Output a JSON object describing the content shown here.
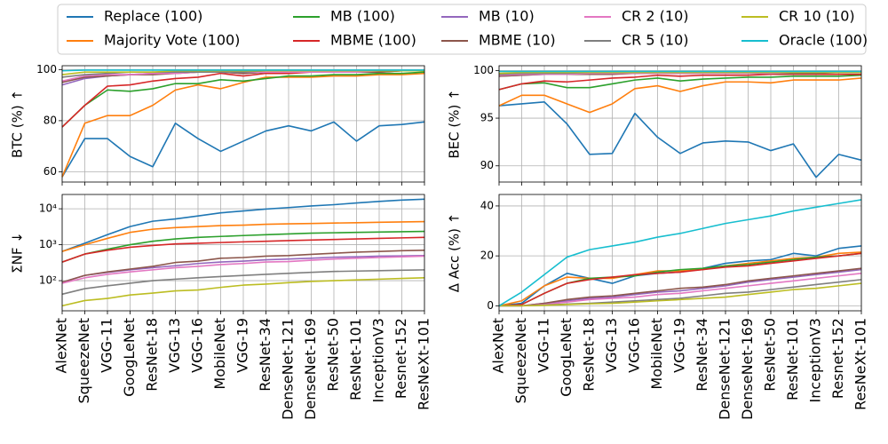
{
  "chart_data": [
    {
      "type": "line",
      "ylabel": "BTC  (%)  ↑",
      "ylim": [
        56,
        101.5
      ],
      "yticks": [
        60,
        80,
        100
      ],
      "grid": true,
      "series": [
        {
          "name": "Replace (100)",
          "color": "#1f77b4",
          "values": [
            58,
            73,
            73,
            66,
            62,
            79,
            73,
            68,
            72,
            76,
            78,
            76,
            79.5,
            72,
            78,
            78.5,
            79.5
          ]
        },
        {
          "name": "Majority Vote (100)",
          "color": "#ff7f0e",
          "values": [
            58,
            79,
            82,
            82,
            86,
            92,
            94,
            92.5,
            95,
            97,
            97,
            97,
            97.5,
            97.5,
            98,
            98,
            98.5
          ]
        },
        {
          "name": "MB (100)",
          "color": "#2ca02c",
          "values": [
            77.5,
            86,
            92,
            91.5,
            92.5,
            94.5,
            94.5,
            96,
            95.5,
            96.5,
            97.5,
            97.5,
            98,
            98,
            98.5,
            98.5,
            99
          ]
        },
        {
          "name": "MBME (100)",
          "color": "#d62728",
          "values": [
            77.5,
            86,
            93.5,
            94,
            95.5,
            96.5,
            97,
            98.5,
            97.5,
            98.5,
            98.5,
            99,
            99,
            99,
            99,
            99.5,
            99.5
          ]
        },
        {
          "name": "MB (10)",
          "color": "#9467bd",
          "values": [
            94,
            96.5,
            97.5,
            98,
            98.5,
            99,
            99,
            99,
            98.5,
            99,
            99,
            99,
            99,
            99,
            99.5,
            99.5,
            99.5
          ]
        },
        {
          "name": "MBME (10)",
          "color": "#8c564b",
          "values": [
            95,
            97,
            97.5,
            98,
            98,
            98.5,
            99,
            99,
            98.5,
            99,
            99,
            99,
            99,
            99,
            99,
            99.5,
            99.5
          ]
        },
        {
          "name": "CR 2 (10)",
          "color": "#e377c2",
          "values": [
            95.5,
            97.5,
            98,
            98,
            98.5,
            98.5,
            99,
            99,
            99,
            99,
            99,
            99,
            99,
            99,
            99.5,
            99.5,
            99.5
          ]
        },
        {
          "name": "CR 5 (10)",
          "color": "#7f7f7f",
          "values": [
            97,
            98,
            98.5,
            99,
            99,
            99,
            99,
            99,
            99,
            99.5,
            99.5,
            99.5,
            99.5,
            99.5,
            99.5,
            99.5,
            99.5
          ]
        },
        {
          "name": "CR 10 (10)",
          "color": "#bcbd22",
          "values": [
            98,
            99,
            99,
            99,
            99,
            99.5,
            99.5,
            99.5,
            99.5,
            99.5,
            99.5,
            99.5,
            99.5,
            99.5,
            99.5,
            99.5,
            99.5
          ]
        },
        {
          "name": "Oracle (100)",
          "color": "#17becf",
          "values": [
            99.5,
            99.8,
            99.8,
            99.8,
            99.8,
            99.8,
            99.8,
            99.8,
            99.8,
            99.8,
            99.8,
            99.8,
            99.8,
            99.8,
            99.8,
            99.8,
            99.8
          ]
        }
      ]
    },
    {
      "type": "line",
      "ylabel": "BEC (%)  ↑",
      "ylim": [
        88.3,
        100.5
      ],
      "yticks": [
        90,
        95,
        100
      ],
      "grid": true,
      "series": [
        {
          "name": "Replace (100)",
          "color": "#1f77b4",
          "values": [
            96.3,
            96.5,
            96.7,
            94.4,
            91.2,
            91.3,
            95.5,
            93,
            91.3,
            92.4,
            92.6,
            92.5,
            91.6,
            92.3,
            88.8,
            91.2,
            90.6
          ]
        },
        {
          "name": "Majority Vote (100)",
          "color": "#ff7f0e",
          "values": [
            96.3,
            97.4,
            97.4,
            96.5,
            95.6,
            96.5,
            98.1,
            98.4,
            97.8,
            98.4,
            98.8,
            98.8,
            98.7,
            99,
            99,
            99,
            99.2
          ]
        },
        {
          "name": "MB (100)",
          "color": "#2ca02c",
          "values": [
            98,
            98.6,
            98.7,
            98.2,
            98.2,
            98.6,
            99,
            99.2,
            98.9,
            99.1,
            99.2,
            99.3,
            99.3,
            99.4,
            99.4,
            99.4,
            99.5
          ]
        },
        {
          "name": "MBME (100)",
          "color": "#d62728",
          "values": [
            98,
            98.6,
            98.9,
            98.8,
            99,
            99.2,
            99.3,
            99.5,
            99.4,
            99.5,
            99.5,
            99.5,
            99.6,
            99.6,
            99.6,
            99.6,
            99.6
          ]
        },
        {
          "name": "MB (10)",
          "color": "#9467bd",
          "values": [
            99.4,
            99.5,
            99.6,
            99.6,
            99.6,
            99.7,
            99.7,
            99.7,
            99.7,
            99.7,
            99.7,
            99.7,
            99.7,
            99.7,
            99.8,
            99.8,
            99.8
          ]
        },
        {
          "name": "MBME (10)",
          "color": "#8c564b",
          "values": [
            99.4,
            99.5,
            99.6,
            99.6,
            99.6,
            99.6,
            99.7,
            99.7,
            99.7,
            99.7,
            99.7,
            99.7,
            99.7,
            99.7,
            99.7,
            99.8,
            99.8
          ]
        },
        {
          "name": "CR 2 (10)",
          "color": "#e377c2",
          "values": [
            99.5,
            99.6,
            99.6,
            99.6,
            99.7,
            99.7,
            99.7,
            99.7,
            99.7,
            99.7,
            99.7,
            99.7,
            99.7,
            99.8,
            99.8,
            99.8,
            99.8
          ]
        },
        {
          "name": "CR 5 (10)",
          "color": "#7f7f7f",
          "values": [
            99.6,
            99.7,
            99.7,
            99.7,
            99.8,
            99.8,
            99.8,
            99.8,
            99.8,
            99.8,
            99.8,
            99.8,
            99.8,
            99.8,
            99.8,
            99.8,
            99.8
          ]
        },
        {
          "name": "CR 10 (10)",
          "color": "#bcbd22",
          "values": [
            99.7,
            99.8,
            99.8,
            99.8,
            99.8,
            99.8,
            99.8,
            99.8,
            99.8,
            99.8,
            99.8,
            99.8,
            99.8,
            99.8,
            99.8,
            99.8,
            99.8
          ]
        },
        {
          "name": "Oracle (100)",
          "color": "#17becf",
          "values": [
            99.9,
            99.9,
            99.9,
            99.9,
            99.9,
            99.9,
            99.9,
            99.9,
            99.9,
            99.9,
            99.9,
            99.9,
            99.9,
            99.9,
            99.9,
            99.9,
            99.9
          ]
        }
      ]
    },
    {
      "type": "line",
      "ylabel": "ΣNF  ↓",
      "log": true,
      "ylim": [
        14.5,
        25000
      ],
      "yticks": [
        {
          "value": 100,
          "label": "10²"
        },
        {
          "value": 1000,
          "label": "10³"
        },
        {
          "value": 10000,
          "label": "10⁴"
        }
      ],
      "grid": true,
      "categories": [
        "AlexNet",
        "SqueezeNet",
        "VGG-11",
        "GoogLeNet",
        "ResNet-18",
        "VGG-13",
        "VGG-16",
        "MobileNet",
        "VGG-19",
        "ResNet-34",
        "DenseNet-121",
        "DenseNet-169",
        "ResNet-50",
        "ResNet-101",
        "InceptionV3",
        "Resnet-152",
        "ResNeXt-101"
      ],
      "series": [
        {
          "name": "Replace (100)",
          "color": "#1f77b4",
          "values": [
            650,
            1100,
            1900,
            3200,
            4500,
            5200,
            6300,
            7700,
            8700,
            9800,
            10800,
            12000,
            13000,
            14500,
            16000,
            17500,
            18500
          ]
        },
        {
          "name": "Majority Vote (100)",
          "color": "#ff7f0e",
          "values": [
            650,
            1000,
            1500,
            2200,
            2700,
            3000,
            3200,
            3400,
            3500,
            3700,
            3800,
            3900,
            4000,
            4100,
            4200,
            4300,
            4400
          ]
        },
        {
          "name": "MB (100)",
          "color": "#2ca02c",
          "values": [
            330,
            550,
            750,
            1000,
            1250,
            1450,
            1600,
            1700,
            1800,
            1900,
            2000,
            2100,
            2150,
            2200,
            2250,
            2300,
            2350
          ]
        },
        {
          "name": "MBME (100)",
          "color": "#d62728",
          "values": [
            330,
            550,
            700,
            850,
            950,
            1050,
            1100,
            1150,
            1200,
            1250,
            1300,
            1350,
            1400,
            1450,
            1500,
            1550,
            1600
          ]
        },
        {
          "name": "MB (10)",
          "color": "#9467bd",
          "values": [
            90,
            140,
            170,
            200,
            230,
            260,
            300,
            330,
            350,
            380,
            400,
            420,
            450,
            460,
            480,
            490,
            500
          ]
        },
        {
          "name": "MBME (10)",
          "color": "#8c564b",
          "values": [
            90,
            140,
            175,
            210,
            250,
            320,
            350,
            420,
            440,
            480,
            500,
            540,
            580,
            620,
            650,
            680,
            700
          ]
        },
        {
          "name": "CR 2 (10)",
          "color": "#e377c2",
          "values": [
            85,
            120,
            150,
            175,
            200,
            230,
            250,
            280,
            300,
            330,
            340,
            370,
            400,
            420,
            440,
            460,
            480
          ]
        },
        {
          "name": "CR 5 (10)",
          "color": "#7f7f7f",
          "values": [
            42,
            60,
            72,
            85,
            100,
            110,
            120,
            130,
            140,
            150,
            160,
            170,
            180,
            185,
            190,
            195,
            200
          ]
        },
        {
          "name": "CR 10 (10)",
          "color": "#bcbd22",
          "values": [
            20,
            28,
            32,
            40,
            45,
            52,
            55,
            65,
            75,
            80,
            88,
            95,
            100,
            105,
            110,
            115,
            120
          ]
        }
      ]
    },
    {
      "type": "line",
      "ylabel": "Δ Acc (%)  ↑",
      "ylim": [
        -2,
        44.6
      ],
      "yticks": [
        0,
        20,
        40
      ],
      "grid": true,
      "categories": [
        "AlexNet",
        "SqueezeNet",
        "VGG-11",
        "GoogLeNet",
        "ResNet-18",
        "VGG-13",
        "VGG-16",
        "MobileNet",
        "VGG-19",
        "ResNet-34",
        "DenseNet-121",
        "DenseNet-169",
        "ResNet-50",
        "ResNet-101",
        "InceptionV3",
        "Resnet-152",
        "ResNeXt-101"
      ],
      "series": [
        {
          "name": "Replace (100)",
          "color": "#1f77b4",
          "values": [
            0,
            1,
            8,
            13,
            11,
            9,
            12,
            13,
            13.5,
            15,
            17,
            18,
            18.5,
            21,
            20,
            23,
            24
          ]
        },
        {
          "name": "Majority Vote (100)",
          "color": "#ff7f0e",
          "values": [
            0,
            2,
            8,
            11.5,
            11,
            11,
            12.5,
            14,
            14,
            14.5,
            16,
            17,
            18,
            19,
            19.5,
            21,
            21.5
          ]
        },
        {
          "name": "MB (100)",
          "color": "#2ca02c",
          "values": [
            0,
            0.5,
            5,
            9,
            11,
            11.5,
            12,
            13.5,
            14.5,
            15,
            16,
            16.5,
            17.5,
            18.5,
            19.5,
            20,
            21
          ]
        },
        {
          "name": "MBME (100)",
          "color": "#d62728",
          "values": [
            0,
            0.5,
            5,
            9,
            10.5,
            11.5,
            12.5,
            13,
            13.5,
            14.5,
            15.5,
            16,
            17,
            18,
            19,
            20,
            21
          ]
        },
        {
          "name": "MB (10)",
          "color": "#9467bd",
          "values": [
            0,
            0,
            1,
            2,
            3,
            3.5,
            4.5,
            5.5,
            6,
            7,
            8,
            9.5,
            10.5,
            11.5,
            12.5,
            13.5,
            14.5
          ]
        },
        {
          "name": "MBME (10)",
          "color": "#8c564b",
          "values": [
            0,
            0,
            1,
            2.5,
            3.5,
            4,
            5,
            6,
            7,
            7.5,
            8.5,
            10,
            11,
            12,
            13,
            14,
            15
          ]
        },
        {
          "name": "CR 2 (10)",
          "color": "#e377c2",
          "values": [
            0,
            0,
            0.5,
            1.5,
            2.5,
            3,
            3.5,
            4.5,
            5,
            6,
            7,
            8,
            9,
            10,
            11,
            12,
            13
          ]
        },
        {
          "name": "CR 5 (10)",
          "color": "#7f7f7f",
          "values": [
            0,
            0,
            0.3,
            0.7,
            1,
            1.5,
            2,
            2.5,
            3,
            4,
            5,
            5.5,
            6.5,
            7.5,
            8.5,
            9.5,
            10.5
          ]
        },
        {
          "name": "CR 10 (10)",
          "color": "#bcbd22",
          "values": [
            0,
            0,
            0.2,
            0.5,
            0.8,
            1,
            1.5,
            2,
            2.5,
            3,
            3.5,
            4.5,
            5.5,
            6.5,
            7,
            8,
            9
          ]
        },
        {
          "name": "Oracle (100)",
          "color": "#17becf",
          "values": [
            0,
            5.5,
            12.5,
            19.5,
            22.5,
            24,
            25.5,
            27.5,
            29,
            31,
            33,
            34.5,
            36,
            38,
            39.5,
            41,
            42.5
          ]
        }
      ]
    }
  ]
}
